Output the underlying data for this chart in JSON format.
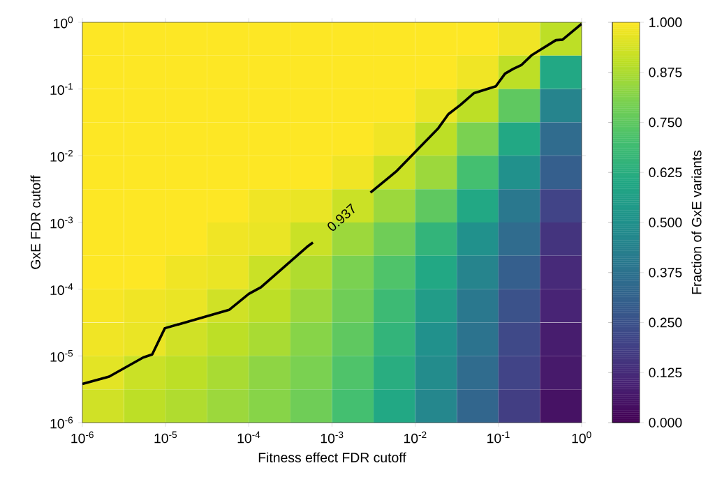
{
  "chart_data": {
    "type": "heatmap",
    "grid": false,
    "xlabel": "Fitness effect FDR cutoff",
    "ylabel": "GxE FDR cutoff",
    "clabel": "Fraction of GxE variants",
    "log": "xy",
    "xlim": [
      1e-06,
      1
    ],
    "ylim": [
      1e-06,
      1
    ],
    "xticks": [
      {
        "value": 1e-06,
        "label": "10$^{-6}$"
      },
      {
        "value": 1e-05,
        "label": "10$^{-5}$"
      },
      {
        "value": 0.0001,
        "label": "10$^{-4}$"
      },
      {
        "value": 0.001,
        "label": "10$^{-3}$"
      },
      {
        "value": 0.01,
        "label": "10$^{-2}$"
      },
      {
        "value": 0.1,
        "label": "10$^{-1}$"
      },
      {
        "value": 1,
        "label": "10$^{0}$"
      }
    ],
    "yticks": [
      {
        "value": 1e-06,
        "label": "10$^{-6}$"
      },
      {
        "value": 1e-05,
        "label": "10$^{-5}$"
      },
      {
        "value": 0.0001,
        "label": "10$^{-4}$"
      },
      {
        "value": 0.001,
        "label": "10$^{-3}$"
      },
      {
        "value": 0.01,
        "label": "10$^{-2}$"
      },
      {
        "value": 0.1,
        "label": "10$^{-1}$"
      },
      {
        "value": 1,
        "label": "10$^{0}$"
      }
    ],
    "clim": [
      0,
      1
    ],
    "cticks": [
      {
        "value": 0,
        "label": "0.000"
      },
      {
        "value": 0.125,
        "label": "0.125"
      },
      {
        "value": 0.25,
        "label": "0.250"
      },
      {
        "value": 0.375,
        "label": "0.375"
      },
      {
        "value": 0.5,
        "label": "0.500"
      },
      {
        "value": 0.625,
        "label": "0.625"
      },
      {
        "value": 0.75,
        "label": "0.750"
      },
      {
        "value": 0.875,
        "label": "0.875"
      },
      {
        "value": 1,
        "label": "1.000"
      }
    ],
    "x": [
      1.78e-06,
      5.62e-06,
      1.78e-05,
      5.62e-05,
      0.000178,
      0.000562,
      0.00178,
      0.00562,
      0.0178,
      0.0562,
      0.178,
      0.562
    ],
    "y": [
      0.562,
      0.178,
      0.0562,
      0.0178,
      0.00562,
      0.00178,
      0.000562,
      0.000178,
      5.62e-05,
      1.78e-05,
      5.62e-06,
      1.78e-06
    ],
    "cells": [
      [
        1,
        1,
        1,
        1,
        1,
        1,
        1,
        1,
        1,
        1,
        0.98,
        0.9
      ],
      [
        1,
        1,
        1,
        1,
        1,
        1,
        1,
        1,
        1,
        0.98,
        0.9,
        0.6
      ],
      [
        1,
        1,
        1,
        1,
        1,
        1,
        1,
        1,
        0.97,
        0.9,
        0.75,
        0.45
      ],
      [
        1,
        1,
        1,
        1,
        1,
        1,
        1,
        0.98,
        0.9,
        0.8,
        0.6,
        0.35
      ],
      [
        1,
        1,
        1,
        1,
        1,
        1,
        0.98,
        0.92,
        0.85,
        0.7,
        0.5,
        0.3
      ],
      [
        1,
        1,
        1,
        1,
        0.98,
        0.97,
        0.92,
        0.85,
        0.75,
        0.6,
        0.4,
        0.2
      ],
      [
        1,
        1,
        1,
        0.98,
        0.97,
        0.92,
        0.85,
        0.78,
        0.65,
        0.5,
        0.35,
        0.15
      ],
      [
        1,
        1,
        0.98,
        0.97,
        0.92,
        0.88,
        0.8,
        0.72,
        0.6,
        0.45,
        0.3,
        0.12
      ],
      [
        0.99,
        0.98,
        0.97,
        0.93,
        0.9,
        0.85,
        0.78,
        0.68,
        0.55,
        0.4,
        0.25,
        0.1
      ],
      [
        0.98,
        0.97,
        0.93,
        0.9,
        0.87,
        0.82,
        0.75,
        0.65,
        0.5,
        0.38,
        0.22,
        0.08
      ],
      [
        0.96,
        0.92,
        0.9,
        0.87,
        0.83,
        0.8,
        0.72,
        0.62,
        0.48,
        0.35,
        0.2,
        0.07
      ],
      [
        0.93,
        0.9,
        0.88,
        0.85,
        0.82,
        0.78,
        0.7,
        0.6,
        0.46,
        0.33,
        0.18,
        0.05
      ]
    ],
    "series": [
      {
        "type": "line",
        "color": "#000000",
        "x": [
          1e-06,
          2.1e-06,
          5.4e-06,
          6.9e-06,
          9.8e-06,
          5.8e-05,
          0.0001,
          0.00014,
          0.0005,
          0.00059,
          0.001,
          0.0029,
          0.0059,
          0.019,
          0.025,
          0.035,
          0.051,
          0.093,
          0.12,
          0.15,
          0.19,
          0.25,
          0.49,
          0.59,
          1.0
        ],
        "values": [
          3.8e-06,
          4.9e-06,
          9.5e-06,
          1.05e-05,
          2.6e-05,
          4.9e-05,
          8.5e-05,
          0.000107,
          0.00043,
          0.0005,
          null,
          0.0028,
          0.0058,
          0.026,
          0.042,
          0.058,
          0.087,
          0.11,
          0.17,
          0.2,
          0.23,
          0.32,
          0.54,
          0.55,
          0.95
        ]
      }
    ],
    "annotations": [
      "0.937"
    ]
  }
}
